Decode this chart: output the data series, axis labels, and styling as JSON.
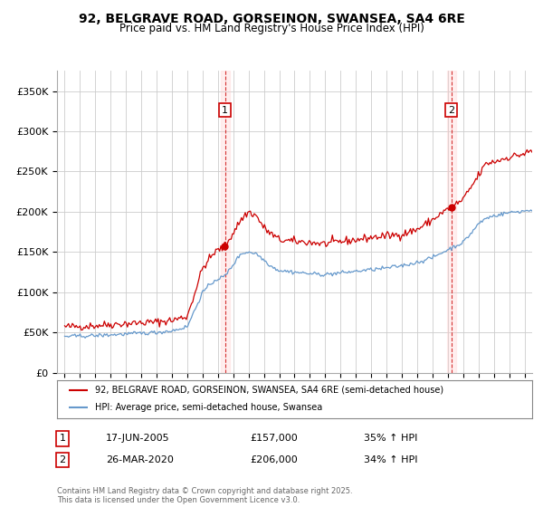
{
  "title": "92, BELGRAVE ROAD, GORSEINON, SWANSEA, SA4 6RE",
  "subtitle": "Price paid vs. HM Land Registry's House Price Index (HPI)",
  "legend_line1": "92, BELGRAVE ROAD, GORSEINON, SWANSEA, SA4 6RE (semi-detached house)",
  "legend_line2": "HPI: Average price, semi-detached house, Swansea",
  "red_color": "#cc0000",
  "blue_color": "#6699cc",
  "vline_color": "#cc0000",
  "grid_color": "#cccccc",
  "bg_color": "#ffffff",
  "annotation1": {
    "num": "1",
    "date": "17-JUN-2005",
    "price": "£157,000",
    "change": "35% ↑ HPI",
    "x": 2005.46
  },
  "annotation2": {
    "num": "2",
    "date": "26-MAR-2020",
    "price": "£206,000",
    "change": "34% ↑ HPI",
    "x": 2020.23
  },
  "footer": "Contains HM Land Registry data © Crown copyright and database right 2025.\nThis data is licensed under the Open Government Licence v3.0.",
  "ylim": [
    0,
    375000
  ],
  "yticks": [
    0,
    50000,
    100000,
    150000,
    200000,
    250000,
    300000,
    350000
  ],
  "xlim": [
    1994.5,
    2025.5
  ],
  "xticks": [
    1995,
    1996,
    1997,
    1998,
    1999,
    2000,
    2001,
    2002,
    2003,
    2004,
    2005,
    2006,
    2007,
    2008,
    2009,
    2010,
    2011,
    2012,
    2013,
    2014,
    2015,
    2016,
    2017,
    2018,
    2019,
    2020,
    2021,
    2022,
    2023,
    2024,
    2025
  ],
  "red_anchors_t": [
    1995.0,
    1996.0,
    1997.0,
    1998.0,
    1999.0,
    2000.0,
    2001.0,
    2002.0,
    2003.0,
    2004.0,
    2004.8,
    2005.46,
    2006.5,
    2007.0,
    2007.5,
    2008.0,
    2008.5,
    2009.0,
    2010.0,
    2011.0,
    2012.0,
    2013.0,
    2014.0,
    2015.0,
    2016.0,
    2017.0,
    2018.0,
    2019.0,
    2019.5,
    2020.23,
    2021.0,
    2021.5,
    2022.0,
    2022.5,
    2023.0,
    2023.5,
    2024.0,
    2024.5,
    2025.0,
    2025.4
  ],
  "red_anchors_v": [
    57000,
    57500,
    58500,
    60000,
    61000,
    62000,
    63000,
    65000,
    70000,
    130000,
    150000,
    157000,
    190000,
    200000,
    195000,
    180000,
    172000,
    165000,
    163000,
    162000,
    160000,
    163000,
    165000,
    168000,
    170000,
    172000,
    178000,
    190000,
    197000,
    206000,
    215000,
    230000,
    245000,
    260000,
    262000,
    265000,
    268000,
    270000,
    272000,
    275000
  ],
  "blue_anchors_t": [
    1995.0,
    1996.0,
    1997.0,
    1998.0,
    1999.0,
    2000.0,
    2001.0,
    2002.0,
    2003.0,
    2004.0,
    2004.8,
    2005.46,
    2006.5,
    2007.0,
    2007.5,
    2008.0,
    2008.5,
    2009.0,
    2010.0,
    2011.0,
    2012.0,
    2013.0,
    2014.0,
    2015.0,
    2016.0,
    2017.0,
    2018.0,
    2019.0,
    2019.5,
    2020.23,
    2021.0,
    2021.5,
    2022.0,
    2022.5,
    2023.0,
    2023.5,
    2024.0,
    2024.5,
    2025.0,
    2025.4
  ],
  "blue_anchors_v": [
    45000,
    45500,
    46000,
    47000,
    48000,
    49000,
    50000,
    52000,
    57000,
    100000,
    115000,
    120000,
    148000,
    150000,
    148000,
    140000,
    132000,
    127000,
    125000,
    123000,
    122000,
    124000,
    126000,
    128000,
    130000,
    133000,
    137000,
    143000,
    148000,
    155000,
    162000,
    173000,
    185000,
    192000,
    195000,
    197000,
    199000,
    200000,
    201000,
    202000
  ]
}
